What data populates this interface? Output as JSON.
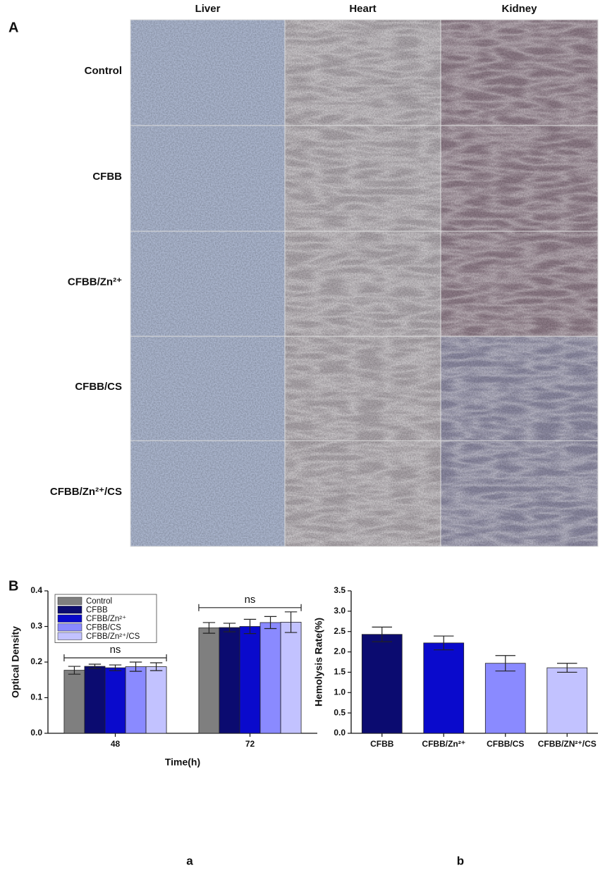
{
  "panel_a": {
    "label": "A",
    "columns": [
      "Liver",
      "Heart",
      "Kidney"
    ],
    "rows": [
      "Control",
      "CFBB",
      "CFBB/Zn²⁺",
      "CFBB/CS",
      "CFBB/Zn²⁺/CS"
    ]
  },
  "panel_b_label": "B",
  "chart_data": [
    {
      "type": "bar",
      "caption": "a",
      "x_label": "Time(h)",
      "y_label": "Optical Density",
      "categories": [
        "48",
        "72"
      ],
      "series": [
        {
          "name": "Control",
          "color": "#7f7f7f",
          "values": [
            0.177,
            0.296
          ],
          "errors": [
            0.011,
            0.015
          ]
        },
        {
          "name": "CFBB",
          "color": "#0b0b70",
          "values": [
            0.188,
            0.297
          ],
          "errors": [
            0.006,
            0.012
          ]
        },
        {
          "name": "CFBB/Zn²⁺",
          "color": "#0a0acc",
          "values": [
            0.184,
            0.3
          ],
          "errors": [
            0.008,
            0.02
          ]
        },
        {
          "name": "CFBB/CS",
          "color": "#8a8aff",
          "values": [
            0.187,
            0.311
          ],
          "errors": [
            0.013,
            0.017
          ]
        },
        {
          "name": "CFBB/Zn²⁺/CS",
          "color": "#c2c2ff",
          "values": [
            0.187,
            0.312
          ],
          "errors": [
            0.011,
            0.029
          ]
        }
      ],
      "annotations": [
        "ns",
        "ns"
      ],
      "ylim": [
        0,
        0.4
      ],
      "yticks": [
        {
          "value": 0,
          "label": "0.0"
        },
        0.1,
        0.2,
        0.3,
        0.4
      ],
      "legend": "upper left"
    },
    {
      "type": "bar",
      "caption": "b",
      "y_label": "Hemolysis Rate(%)",
      "categories": [
        "CFBB",
        "CFBB/Zn²⁺",
        "CFBB/CS",
        "CFBB/ZN²⁺/CS"
      ],
      "values": [
        2.43,
        2.22,
        1.72,
        1.61
      ],
      "errors": [
        0.18,
        0.17,
        0.19,
        0.11
      ],
      "colors": [
        "#0b0b70",
        "#0a0acc",
        "#8a8aff",
        "#c2c2ff"
      ],
      "ylim": [
        0,
        3.5
      ],
      "yticks": [
        {
          "value": 0,
          "label": "0.0"
        },
        0.5,
        {
          "value": 1,
          "label": "1.0"
        },
        1.5,
        {
          "value": 2,
          "label": "2.0"
        },
        2.5,
        {
          "value": 3,
          "label": "3.0"
        },
        3.5
      ]
    }
  ]
}
